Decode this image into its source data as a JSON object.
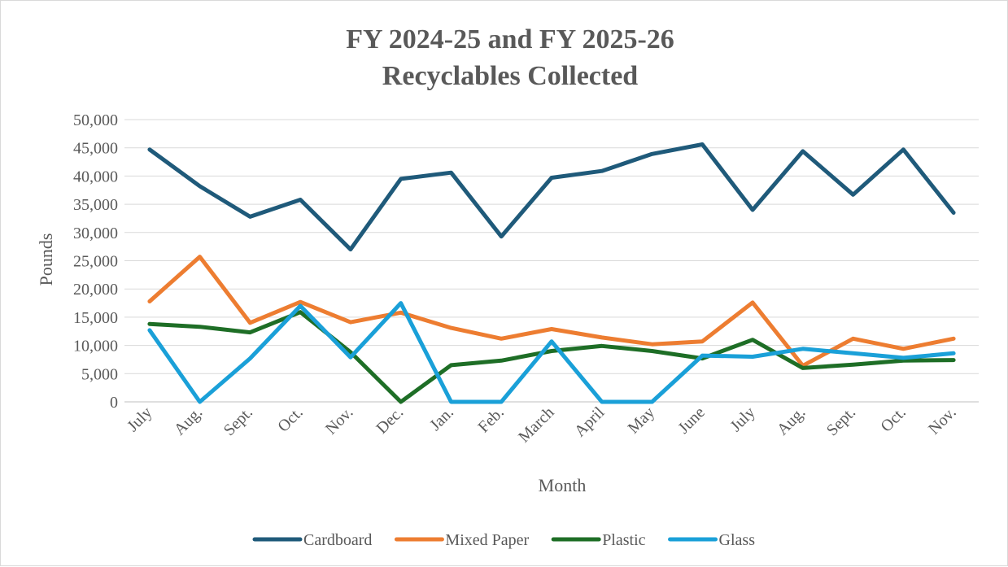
{
  "chart_data": {
    "type": "line",
    "title": [
      "FY 2024-25 and FY 2025-26",
      "Recyclables Collected"
    ],
    "xlabel": "Month",
    "ylabel": "Pounds",
    "categories": [
      "July",
      "Aug.",
      "Sept.",
      "Oct.",
      "Nov.",
      "Dec.",
      "Jan.",
      "Feb.",
      "March",
      "April",
      "May",
      "June",
      "July",
      "Aug.",
      "Sept.",
      "Oct.",
      "Nov."
    ],
    "ylim": [
      0,
      50000
    ],
    "yticks": [
      0,
      5000,
      10000,
      15000,
      20000,
      25000,
      30000,
      35000,
      40000,
      45000,
      50000
    ],
    "ytick_labels": [
      "0",
      "5,000",
      "10,000",
      "15,000",
      "20,000",
      "25,000",
      "30,000",
      "35,000",
      "40,000",
      "45,000",
      "50,000"
    ],
    "grid": "horizontal",
    "legend_position": "bottom",
    "series": [
      {
        "name": "Cardboard",
        "color": "#1f5a7a",
        "values": [
          44700,
          38200,
          32800,
          35800,
          27000,
          39500,
          40600,
          29300,
          39700,
          40900,
          43900,
          45600,
          34000,
          44400,
          36700,
          44700,
          33500
        ]
      },
      {
        "name": "Mixed Paper",
        "color": "#ed7d31",
        "values": [
          17800,
          25700,
          14000,
          17700,
          14100,
          15800,
          13100,
          11200,
          12900,
          11400,
          10200,
          10700,
          17600,
          6400,
          11200,
          9400,
          11200
        ]
      },
      {
        "name": "Plastic",
        "color": "#1e6e26",
        "values": [
          13800,
          13300,
          12300,
          15900,
          8800,
          0,
          6500,
          7300,
          9000,
          9900,
          9000,
          7700,
          11000,
          6000,
          6600,
          7300,
          7400
        ]
      },
      {
        "name": "Glass",
        "color": "#1aa0d8",
        "values": [
          12700,
          0,
          7700,
          17000,
          7900,
          17500,
          0,
          0,
          10700,
          0,
          0,
          8200,
          8000,
          9400,
          8600,
          7800,
          8600
        ]
      }
    ]
  }
}
